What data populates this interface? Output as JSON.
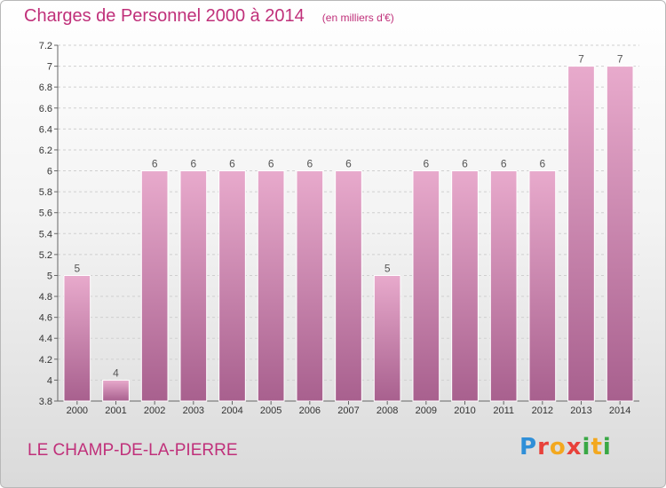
{
  "header": {
    "title": "Charges de Personnel 2000 à 2014",
    "subtitle": "(en milliers d'€)"
  },
  "footer": {
    "town": "LE CHAMP-DE-LA-PIERRE",
    "logo_text": "Proxiti"
  },
  "colors": {
    "accent": "#c0307a",
    "bar_top": "#e8aacc",
    "bar_bottom": "#a8608e",
    "grid": "#cfcfcf"
  },
  "chart_data": {
    "type": "bar",
    "categories": [
      "2000",
      "2001",
      "2002",
      "2003",
      "2004",
      "2005",
      "2006",
      "2007",
      "2008",
      "2009",
      "2010",
      "2011",
      "2012",
      "2013",
      "2014"
    ],
    "values": [
      5,
      4,
      6,
      6,
      6,
      6,
      6,
      6,
      5,
      6,
      6,
      6,
      6,
      7,
      7
    ],
    "data_labels": [
      "5",
      "4",
      "6",
      "6",
      "6",
      "6",
      "6",
      "6",
      "5",
      "6",
      "6",
      "6",
      "6",
      "7",
      "7"
    ],
    "title": "Charges de Personnel 2000 à 2014",
    "xlabel": "",
    "ylabel": "",
    "ylim": [
      3.8,
      7.2
    ],
    "yticks": [
      3.8,
      4,
      4.2,
      4.4,
      4.6,
      4.8,
      5,
      5.2,
      5.4,
      5.6,
      5.8,
      6,
      6.2,
      6.4,
      6.6,
      6.8,
      7,
      7.2
    ],
    "ytick_labels": [
      "3.8",
      "4",
      "4.2",
      "4.4",
      "4.6",
      "4.8",
      "5",
      "5.2",
      "5.4",
      "5.6",
      "5.8",
      "6",
      "6.2",
      "6.4",
      "6.6",
      "6.8",
      "7",
      "7.2"
    ],
    "grid": true,
    "grid_style": "dashed horizontal"
  }
}
